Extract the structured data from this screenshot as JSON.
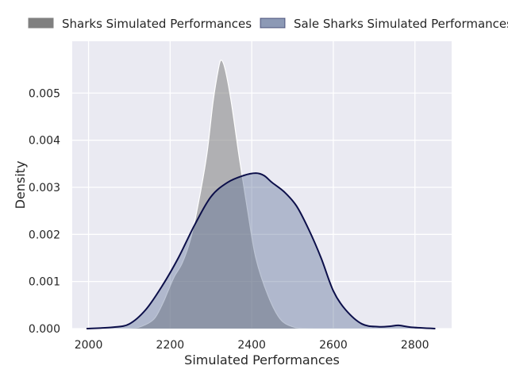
{
  "chart_data": {
    "type": "area",
    "title": "",
    "xlabel": "Simulated Performances",
    "ylabel": "Density",
    "xlim": [
      1960,
      2890
    ],
    "ylim": [
      0,
      0.0061
    ],
    "xticks": [
      2000,
      2200,
      2400,
      2600,
      2800
    ],
    "yticks": [
      0.0,
      0.001,
      0.002,
      0.003,
      0.004,
      0.005
    ],
    "xtick_labels": [
      "2000",
      "2200",
      "2400",
      "2600",
      "2800"
    ],
    "ytick_labels": [
      "0.000",
      "0.001",
      "0.002",
      "0.003",
      "0.004",
      "0.005"
    ],
    "grid": true,
    "legend_position": "top, outside plot",
    "background": "#EAEAF2",
    "series": [
      {
        "name": "Sharks Simulated Performances",
        "fill": "#808080",
        "fill_opacity": 0.55,
        "line": "#ffffff",
        "x": [
          1995,
          2100,
          2130,
          2160,
          2180,
          2195,
          2210,
          2230,
          2250,
          2270,
          2290,
          2305,
          2318,
          2325,
          2335,
          2350,
          2370,
          2390,
          2410,
          2440,
          2470,
          2500,
          2520,
          2550
        ],
        "y": [
          0.0,
          1e-05,
          5e-05,
          0.0002,
          0.0005,
          0.0008,
          0.0011,
          0.0014,
          0.0019,
          0.0027,
          0.0037,
          0.0048,
          0.0055,
          0.0057,
          0.0055,
          0.0048,
          0.0036,
          0.0025,
          0.0015,
          0.0007,
          0.0002,
          4e-05,
          1e-05,
          0.0
        ]
      },
      {
        "name": "Sale Sharks Simulated Performances",
        "fill": "#5B6E96",
        "fill_opacity": 0.4,
        "line": "#0C0F4A",
        "x": [
          1995,
          2060,
          2100,
          2140,
          2180,
          2220,
          2260,
          2300,
          2340,
          2380,
          2410,
          2430,
          2450,
          2480,
          2510,
          2540,
          2570,
          2600,
          2630,
          2670,
          2710,
          2740,
          2760,
          2790,
          2850
        ],
        "y": [
          0.0,
          3e-05,
          0.0001,
          0.0004,
          0.0009,
          0.0015,
          0.0022,
          0.0028,
          0.0031,
          0.00325,
          0.0033,
          0.00325,
          0.0031,
          0.0029,
          0.0026,
          0.0021,
          0.0015,
          0.0008,
          0.0004,
          0.0001,
          4e-05,
          5e-05,
          7e-05,
          3e-05,
          0.0
        ]
      }
    ]
  }
}
